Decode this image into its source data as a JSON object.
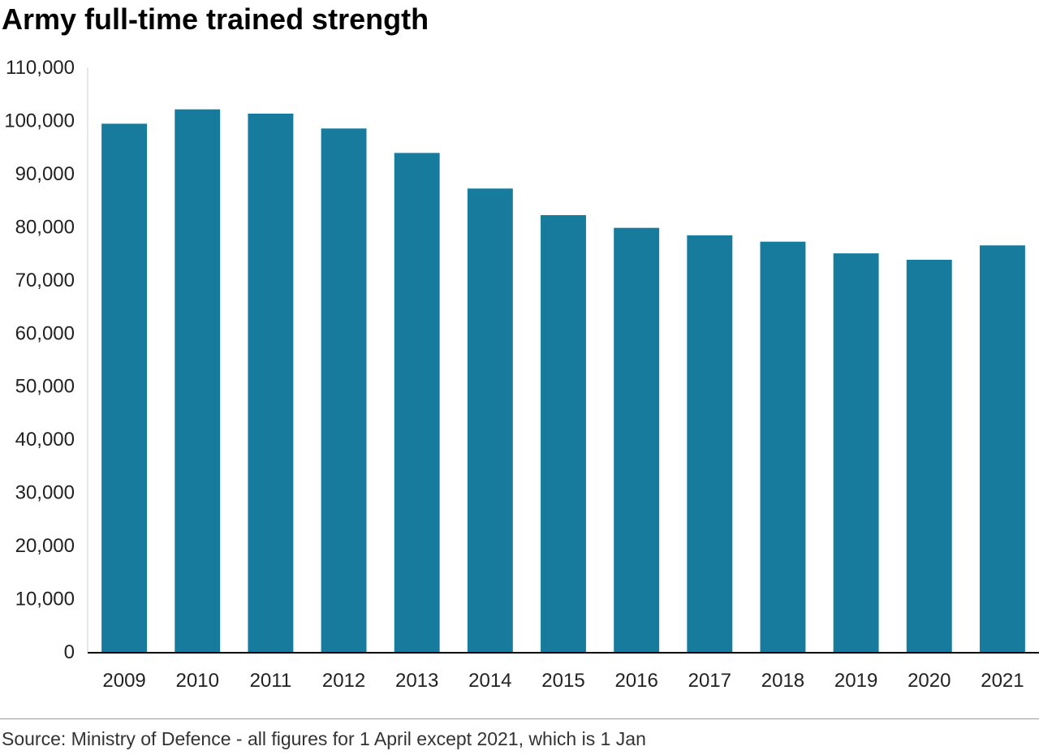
{
  "page": {
    "title": "Army full-time trained strength",
    "source": "Source: Ministry of Defence - all figures for 1 April except 2021, which is 1 Jan"
  },
  "chart_data": {
    "type": "bar",
    "title": "Army full-time trained strength",
    "xlabel": "",
    "ylabel": "",
    "categories": [
      "2009",
      "2010",
      "2011",
      "2012",
      "2013",
      "2014",
      "2015",
      "2016",
      "2017",
      "2018",
      "2019",
      "2020",
      "2021"
    ],
    "values": [
      99400,
      102100,
      101300,
      98500,
      93900,
      87200,
      82200,
      79800,
      78400,
      77200,
      75000,
      73800,
      76500
    ],
    "ylim": [
      0,
      110000
    ],
    "yticks": [
      "0",
      "10,000",
      "20,000",
      "30,000",
      "40,000",
      "50,000",
      "60,000",
      "70,000",
      "80,000",
      "90,000",
      "100,000",
      "110,000"
    ],
    "ytick_values": [
      0,
      10000,
      20000,
      30000,
      40000,
      50000,
      60000,
      70000,
      80000,
      90000,
      100000,
      110000
    ],
    "grid": false,
    "legend": "none",
    "colors": {
      "bar": "#167b9c",
      "axis": "#000000",
      "y_axis_line": "#cfcfcf"
    }
  }
}
